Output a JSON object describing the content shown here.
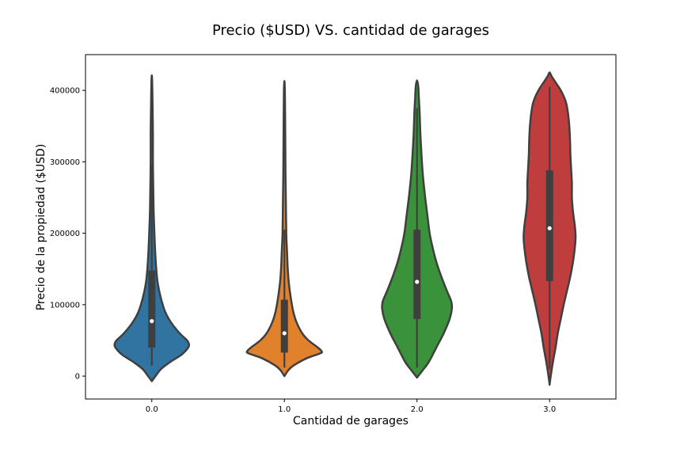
{
  "chart_data": {
    "type": "violin",
    "title": "Precio ($USD) VS. cantidad de garages",
    "xlabel": "Cantidad de garages",
    "ylabel": "Precio de la propiedad ($USD)",
    "categories": [
      "0.0",
      "1.0",
      "2.0",
      "3.0"
    ],
    "ylim": [
      -32000,
      450000
    ],
    "yticks": [
      0,
      100000,
      200000,
      300000,
      400000
    ],
    "yticklabels": [
      "0",
      "100000",
      "200000",
      "300000",
      "400000"
    ],
    "grid": false,
    "colors": [
      "#3274a1",
      "#e1812c",
      "#3a923a",
      "#c03d3e"
    ],
    "edge_color": "#3f3f3f",
    "violins": [
      {
        "category": "0.0",
        "median": 77000,
        "q1": 40000,
        "q3": 148000,
        "whisker_low": 15000,
        "whisker_high": 295000,
        "profile": [
          [
            -7000,
            0.0
          ],
          [
            0,
            0.1
          ],
          [
            10000,
            0.25
          ],
          [
            20000,
            0.5
          ],
          [
            30000,
            0.8
          ],
          [
            40000,
            0.98
          ],
          [
            45000,
            1.0
          ],
          [
            50000,
            0.95
          ],
          [
            60000,
            0.75
          ],
          [
            75000,
            0.52
          ],
          [
            90000,
            0.36
          ],
          [
            110000,
            0.24
          ],
          [
            130000,
            0.16
          ],
          [
            150000,
            0.12
          ],
          [
            175000,
            0.09
          ],
          [
            200000,
            0.07
          ],
          [
            230000,
            0.05
          ],
          [
            260000,
            0.04
          ],
          [
            300000,
            0.03
          ],
          [
            340000,
            0.03
          ],
          [
            380000,
            0.02
          ],
          [
            400000,
            0.015
          ],
          [
            415000,
            0.008
          ],
          [
            421000,
            0.0
          ]
        ]
      },
      {
        "category": "1.0",
        "median": 60000,
        "q1": 33000,
        "q3": 107000,
        "whisker_low": 12000,
        "whisker_high": 205000,
        "profile": [
          [
            0,
            0.0
          ],
          [
            8000,
            0.1
          ],
          [
            15000,
            0.25
          ],
          [
            25000,
            0.6
          ],
          [
            32000,
            0.97
          ],
          [
            35000,
            1.0
          ],
          [
            40000,
            0.9
          ],
          [
            50000,
            0.65
          ],
          [
            60000,
            0.48
          ],
          [
            75000,
            0.33
          ],
          [
            90000,
            0.24
          ],
          [
            110000,
            0.17
          ],
          [
            130000,
            0.12
          ],
          [
            150000,
            0.09
          ],
          [
            175000,
            0.07
          ],
          [
            200000,
            0.05
          ],
          [
            240000,
            0.04
          ],
          [
            280000,
            0.03
          ],
          [
            320000,
            0.025
          ],
          [
            360000,
            0.02
          ],
          [
            390000,
            0.015
          ],
          [
            405000,
            0.01
          ],
          [
            413000,
            0.0
          ]
        ]
      },
      {
        "category": "2.0",
        "median": 132000,
        "q1": 80000,
        "q3": 205000,
        "whisker_low": 12000,
        "whisker_high": 375000,
        "profile": [
          [
            -2000,
            0.0
          ],
          [
            8000,
            0.15
          ],
          [
            20000,
            0.32
          ],
          [
            40000,
            0.52
          ],
          [
            60000,
            0.72
          ],
          [
            80000,
            0.88
          ],
          [
            95000,
            0.94
          ],
          [
            105000,
            0.92
          ],
          [
            120000,
            0.8
          ],
          [
            140000,
            0.65
          ],
          [
            160000,
            0.52
          ],
          [
            180000,
            0.42
          ],
          [
            200000,
            0.34
          ],
          [
            225000,
            0.28
          ],
          [
            250000,
            0.22
          ],
          [
            280000,
            0.16
          ],
          [
            310000,
            0.12
          ],
          [
            340000,
            0.09
          ],
          [
            370000,
            0.07
          ],
          [
            390000,
            0.05
          ],
          [
            405000,
            0.035
          ],
          [
            414000,
            0.0
          ]
        ]
      },
      {
        "category": "3.0",
        "median": 207000,
        "q1": 133000,
        "q3": 288000,
        "whisker_low": 10000,
        "whisker_high": 405000,
        "profile": [
          [
            -12000,
            0.0
          ],
          [
            0,
            0.03
          ],
          [
            20000,
            0.09
          ],
          [
            40000,
            0.16
          ],
          [
            60000,
            0.22
          ],
          [
            80000,
            0.3
          ],
          [
            100000,
            0.38
          ],
          [
            120000,
            0.47
          ],
          [
            140000,
            0.56
          ],
          [
            160000,
            0.63
          ],
          [
            180000,
            0.68
          ],
          [
            195000,
            0.7
          ],
          [
            210000,
            0.68
          ],
          [
            230000,
            0.63
          ],
          [
            250000,
            0.6
          ],
          [
            270000,
            0.6
          ],
          [
            290000,
            0.58
          ],
          [
            310000,
            0.56
          ],
          [
            330000,
            0.55
          ],
          [
            350000,
            0.53
          ],
          [
            370000,
            0.49
          ],
          [
            385000,
            0.43
          ],
          [
            400000,
            0.3
          ],
          [
            412000,
            0.15
          ],
          [
            420000,
            0.05
          ],
          [
            425000,
            0.0
          ]
        ]
      }
    ]
  }
}
